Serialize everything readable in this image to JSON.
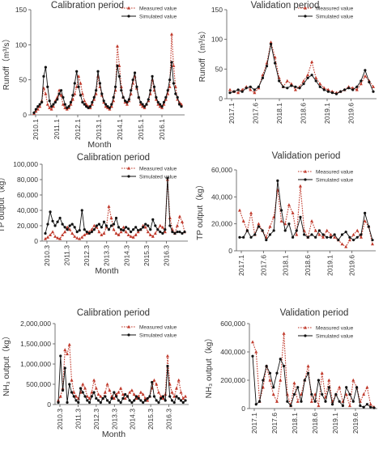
{
  "chart_data": [
    {
      "type": "line",
      "title": "Calibration period",
      "ylabel": "Runoff（m³/s）",
      "xlabel": "Month",
      "ylim": [
        0,
        150
      ],
      "yticks": [
        "0",
        "50",
        "100",
        "150"
      ],
      "xticks": [
        "2010.1",
        "2011.1",
        "2012.1",
        "2013.1",
        "2014.1",
        "2015.1",
        "2016.1"
      ],
      "grid": false,
      "legend": "top-right",
      "series": [
        {
          "name": "Measured value",
          "color": "#c0392b",
          "style": "dotted",
          "values": [
            2,
            5,
            8,
            12,
            20,
            38,
            30,
            15,
            10,
            8,
            12,
            20,
            25,
            35,
            28,
            15,
            10,
            8,
            10,
            15,
            22,
            30,
            40,
            55,
            45,
            30,
            20,
            15,
            12,
            10,
            15,
            22,
            30,
            55,
            40,
            28,
            18,
            12,
            10,
            8,
            12,
            20,
            35,
            98,
            70,
            40,
            25,
            18,
            15,
            20,
            30,
            45,
            55,
            38,
            25,
            15,
            12,
            10,
            15,
            20,
            30,
            50,
            35,
            22,
            15,
            12,
            10,
            15,
            22,
            30,
            40,
            115,
            70,
            40,
            22,
            18,
            15
          ]
        },
        {
          "name": "Simulated value",
          "color": "#111111",
          "style": "solid",
          "values": [
            3,
            8,
            12,
            15,
            18,
            55,
            68,
            40,
            20,
            12,
            15,
            18,
            22,
            30,
            35,
            25,
            15,
            10,
            12,
            18,
            28,
            45,
            62,
            40,
            28,
            18,
            15,
            12,
            10,
            12,
            18,
            25,
            35,
            62,
            45,
            30,
            20,
            15,
            12,
            10,
            15,
            25,
            40,
            70,
            55,
            35,
            25,
            20,
            18,
            22,
            35,
            50,
            60,
            40,
            25,
            18,
            15,
            12,
            15,
            22,
            35,
            55,
            40,
            25,
            18,
            15,
            12,
            18,
            25,
            35,
            50,
            75,
            45,
            30,
            25,
            15,
            12
          ]
        }
      ]
    },
    {
      "type": "line",
      "title": "Validation period",
      "ylabel": "Runoff（m³/s）",
      "xlabel": "",
      "ylim": [
        0,
        150
      ],
      "yticks": [
        "0",
        "50",
        "100",
        "150"
      ],
      "xticks": [
        "2017.1",
        "2017.6",
        "2018.1",
        "2018.6",
        "2019.1",
        "2019.6"
      ],
      "grid": false,
      "legend": "top-right",
      "series": [
        {
          "name": "Measured value",
          "color": "#c0392b",
          "style": "dotted",
          "values": [
            15,
            12,
            10,
            15,
            20,
            15,
            10,
            18,
            40,
            60,
            95,
            70,
            35,
            20,
            30,
            25,
            15,
            20,
            30,
            40,
            62,
            35,
            25,
            18,
            15,
            12,
            10,
            12,
            15,
            20,
            18,
            15,
            25,
            38,
            30,
            20
          ]
        },
        {
          "name": "Simulated value",
          "color": "#111111",
          "style": "solid",
          "values": [
            10,
            12,
            15,
            12,
            18,
            20,
            15,
            20,
            35,
            55,
            92,
            60,
            30,
            20,
            18,
            22,
            20,
            18,
            25,
            35,
            40,
            30,
            20,
            15,
            12,
            10,
            8,
            12,
            15,
            18,
            15,
            20,
            30,
            48,
            28,
            12
          ]
        }
      ]
    },
    {
      "type": "line",
      "title": "Calibration period",
      "ylabel": "TP output（kg）",
      "xlabel": "Month",
      "ylim": [
        0,
        100000
      ],
      "yticks": [
        "0",
        "20,000",
        "40,000",
        "60,000",
        "80,000",
        "100,000"
      ],
      "xticks": [
        "2010.3",
        "2011.3",
        "2012.3",
        "2013.3",
        "2014.3",
        "2015.3",
        "2016.3"
      ],
      "grid": false,
      "legend": "top-right",
      "series": [
        {
          "name": "Measured value",
          "color": "#c0392b",
          "style": "dotted",
          "values": [
            3000,
            5000,
            8000,
            12000,
            6000,
            4000,
            3000,
            8000,
            12000,
            18000,
            15000,
            10000,
            6000,
            4000,
            3000,
            5000,
            8000,
            10000,
            12000,
            15000,
            20000,
            18000,
            12000,
            8000,
            10000,
            18000,
            45000,
            30000,
            15000,
            10000,
            8000,
            12000,
            18000,
            12000,
            8000,
            6000,
            5000,
            8000,
            12000,
            15000,
            20000,
            18000,
            12000,
            8000,
            6000,
            10000,
            15000,
            20000,
            18000,
            12000,
            80000,
            30000,
            15000,
            10000,
            20000,
            32000,
            25000,
            12000
          ]
        },
        {
          "name": "Simulated value",
          "color": "#111111",
          "style": "solid",
          "values": [
            10000,
            22000,
            38000,
            26000,
            20000,
            25000,
            30000,
            22000,
            18000,
            15000,
            20000,
            22000,
            18000,
            12000,
            14000,
            40000,
            15000,
            12000,
            10000,
            12000,
            15000,
            20000,
            22000,
            18000,
            25000,
            20000,
            15000,
            20000,
            22000,
            30000,
            18000,
            15000,
            14000,
            18000,
            16000,
            12000,
            15000,
            18000,
            14000,
            15000,
            18000,
            22000,
            20000,
            15000,
            28000,
            20000,
            15000,
            12000,
            10000,
            15000,
            82000,
            20000,
            12000,
            10000,
            12000,
            12000,
            10000,
            12000
          ]
        }
      ]
    },
    {
      "type": "line",
      "title": "Validation period",
      "ylabel": "TP output（kg）",
      "xlabel": "",
      "ylim": [
        0,
        60000
      ],
      "yticks": [
        "0",
        "20,000",
        "40,000",
        "60,000"
      ],
      "xticks": [
        "2017.1",
        "2017.6",
        "2018.1",
        "2018.6",
        "2019.1",
        "2019.6"
      ],
      "grid": false,
      "legend": "top-right",
      "series": [
        {
          "name": "Measured value",
          "color": "#c0392b",
          "style": "dotted",
          "values": [
            30000,
            22000,
            15000,
            28000,
            12000,
            20000,
            15000,
            10000,
            18000,
            25000,
            45000,
            22000,
            20000,
            34000,
            28000,
            12000,
            48000,
            15000,
            10000,
            22000,
            15000,
            12000,
            10000,
            15000,
            12000,
            10000,
            8000,
            5000,
            3000,
            8000,
            12000,
            15000,
            10000,
            22000,
            18000,
            5000
          ]
        },
        {
          "name": "Simulated value",
          "color": "#111111",
          "style": "solid",
          "values": [
            10000,
            10000,
            15000,
            10000,
            12000,
            18000,
            15000,
            8000,
            12000,
            15000,
            52000,
            30000,
            15000,
            20000,
            10000,
            15000,
            25000,
            12000,
            10000,
            12000,
            10000,
            15000,
            12000,
            10000,
            10000,
            12000,
            8000,
            12000,
            14000,
            10000,
            8000,
            10000,
            12000,
            28000,
            18000,
            8000
          ]
        }
      ]
    },
    {
      "type": "line",
      "title": "Calibration period",
      "ylabel": "NH₃ output（kg）",
      "xlabel": "Month",
      "ylim": [
        0,
        2000000
      ],
      "yticks": [
        "0",
        "500,000",
        "1,000,000",
        "1,500,000",
        "2,000,000"
      ],
      "xticks": [
        "2010.3",
        "2011.3",
        "2012.3",
        "2013.3",
        "2014.3",
        "2015.3",
        "2016.3"
      ],
      "grid": false,
      "legend": "top-right",
      "series": [
        {
          "name": "Measured value",
          "color": "#c0392b",
          "style": "dotted",
          "values": [
            100000,
            200000,
            400000,
            1350000,
            1250000,
            1480000,
            600000,
            300000,
            200000,
            150000,
            300000,
            500000,
            400000,
            200000,
            150000,
            300000,
            600000,
            400000,
            250000,
            200000,
            150000,
            300000,
            500000,
            350000,
            200000,
            150000,
            250000,
            300000,
            400000,
            250000,
            150000,
            200000,
            300000,
            350000,
            250000,
            150000,
            200000,
            300000,
            250000,
            150000,
            100000,
            200000,
            400000,
            600000,
            500000,
            300000,
            200000,
            150000,
            250000,
            1200000,
            500000,
            300000,
            200000,
            400000,
            600000,
            300000,
            150000,
            200000
          ]
        },
        {
          "name": "Simulated value",
          "color": "#111111",
          "style": "solid",
          "values": [
            50000,
            1200000,
            350000,
            900000,
            50000,
            500000,
            300000,
            200000,
            100000,
            50000,
            400000,
            300000,
            200000,
            100000,
            50000,
            200000,
            300000,
            150000,
            100000,
            50000,
            150000,
            200000,
            100000,
            50000,
            150000,
            300000,
            200000,
            100000,
            50000,
            150000,
            250000,
            200000,
            100000,
            50000,
            100000,
            200000,
            150000,
            100000,
            50000,
            100000,
            150000,
            200000,
            550000,
            200000,
            100000,
            50000,
            150000,
            200000,
            100000,
            950000,
            200000,
            100000,
            50000,
            200000,
            150000,
            100000,
            50000,
            100000
          ]
        }
      ]
    },
    {
      "type": "line",
      "title": "Validation period",
      "ylabel": "NH₃ output（kg）",
      "xlabel": "",
      "ylim": [
        0,
        600000
      ],
      "yticks": [
        "0",
        "200,000",
        "400,000",
        "600,000"
      ],
      "xticks": [
        "2017.1",
        "2017.6",
        "2018.1",
        "2018.6",
        "2019.1",
        "2019.6"
      ],
      "grid": false,
      "legend": "top-right",
      "series": [
        {
          "name": "Measured value",
          "color": "#c0392b",
          "style": "dotted",
          "values": [
            470000,
            400000,
            50000,
            150000,
            300000,
            200000,
            100000,
            50000,
            200000,
            530000,
            100000,
            20000,
            180000,
            50000,
            100000,
            200000,
            300000,
            50000,
            100000,
            20000,
            250000,
            80000,
            200000,
            50000,
            100000,
            150000,
            50000,
            100000,
            20000,
            200000,
            150000,
            50000,
            100000,
            150000,
            30000,
            10000
          ]
        },
        {
          "name": "Simulated value",
          "color": "#111111",
          "style": "solid",
          "values": [
            370000,
            30000,
            50000,
            200000,
            300000,
            250000,
            150000,
            250000,
            350000,
            300000,
            50000,
            20000,
            100000,
            150000,
            50000,
            200000,
            250000,
            100000,
            50000,
            200000,
            100000,
            50000,
            150000,
            30000,
            100000,
            50000,
            20000,
            150000,
            100000,
            50000,
            150000,
            20000,
            10000,
            30000,
            10000,
            5000
          ]
        }
      ]
    }
  ]
}
